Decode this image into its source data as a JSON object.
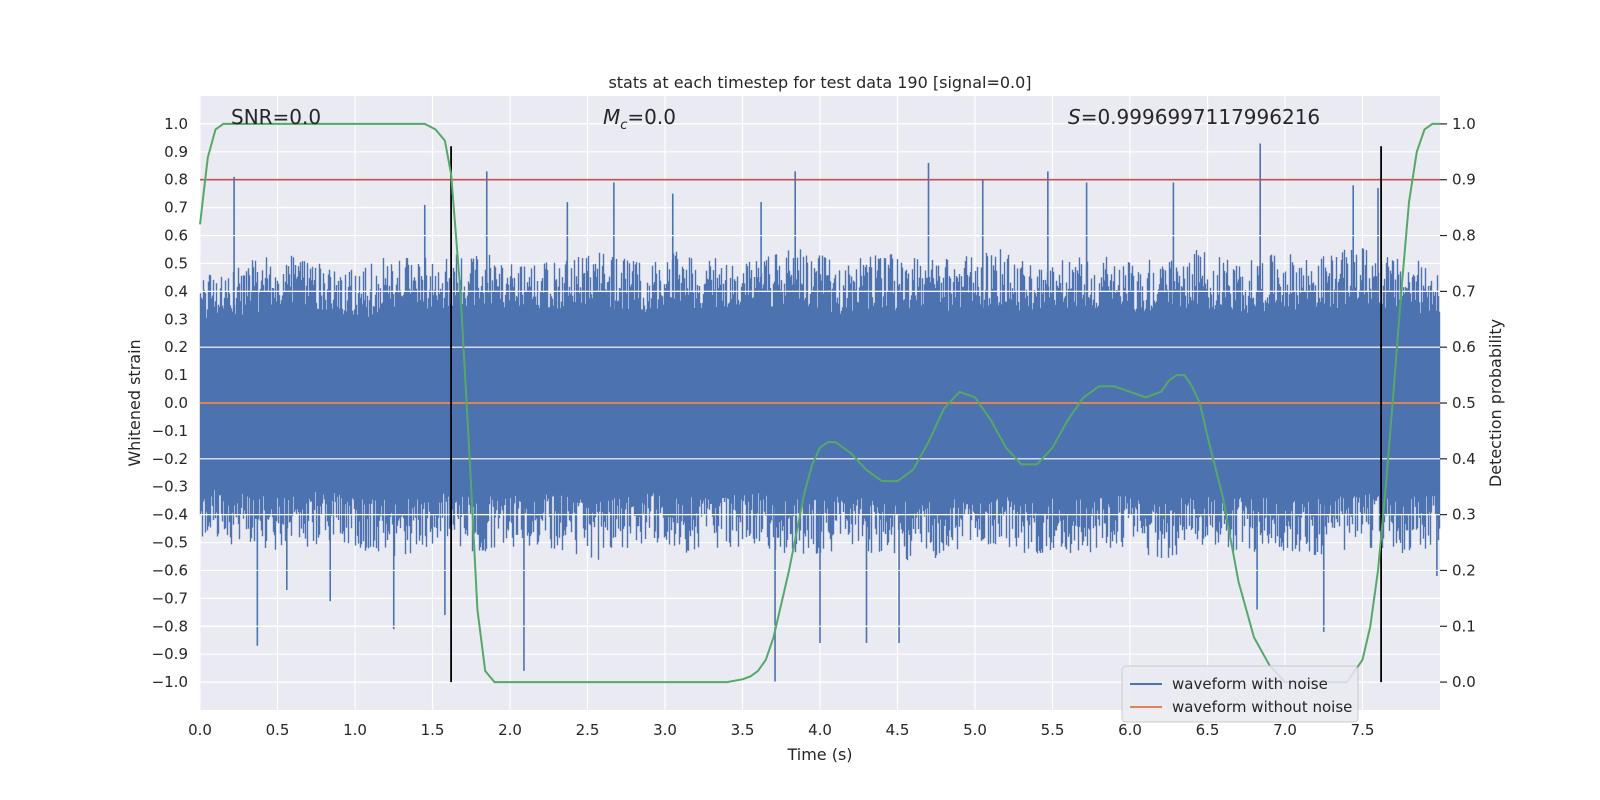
{
  "chart_data": {
    "type": "line",
    "title": "stats at each timestep for test data 190 [signal=0.0]",
    "xlabel": "Time (s)",
    "ylabel_left": "Whitened strain",
    "ylabel_right": "Detection probability",
    "xlim": [
      0.0,
      8.0
    ],
    "ylim_left": [
      -1.1,
      1.1
    ],
    "ylim_right": [
      -0.05,
      1.05
    ],
    "x_ticks": [
      0.0,
      0.5,
      1.0,
      1.5,
      2.0,
      2.5,
      3.0,
      3.5,
      4.0,
      4.5,
      5.0,
      5.5,
      6.0,
      6.5,
      7.0,
      7.5
    ],
    "x_tick_labels": [
      "0.0",
      "0.5",
      "1.0",
      "1.5",
      "2.0",
      "2.5",
      "3.0",
      "3.5",
      "4.0",
      "4.5",
      "5.0",
      "5.5",
      "6.0",
      "6.5",
      "7.0",
      "7.5"
    ],
    "y_left_ticks": [
      1.0,
      0.9,
      0.8,
      0.7,
      0.6,
      0.5,
      0.4,
      0.3,
      0.2,
      0.1,
      0.0,
      -0.1,
      -0.2,
      -0.3,
      -0.4,
      -0.5,
      -0.6,
      -0.7,
      -0.8,
      -0.9,
      -1.0
    ],
    "y_left_tick_labels": [
      "1.0",
      "0.9",
      "0.8",
      "0.7",
      "0.6",
      "0.5",
      "0.4",
      "0.3",
      "0.2",
      "0.1",
      "0.0",
      "−0.1",
      "−0.2",
      "−0.3",
      "−0.4",
      "−0.5",
      "−0.6",
      "−0.7",
      "−0.8",
      "−0.9",
      "−1.0"
    ],
    "y_right_ticks": [
      1.0,
      0.9,
      0.8,
      0.7,
      0.6,
      0.5,
      0.4,
      0.3,
      0.2,
      0.1,
      0.0
    ],
    "y_right_tick_labels": [
      "1.0",
      "0.9",
      "0.8",
      "0.7",
      "0.6",
      "0.5",
      "0.4",
      "0.3",
      "0.2",
      "0.1",
      "0.0"
    ],
    "grid": true,
    "legend": {
      "placement": "lower-right",
      "entries": [
        {
          "label": "waveform with noise",
          "color": "#4c72b0"
        },
        {
          "label": "waveform without noise",
          "color": "#dd8452"
        }
      ]
    },
    "annotations": [
      {
        "text": "SNR=0.0",
        "x": 0.2,
        "anchor": "start"
      },
      {
        "text_italic": "M",
        "text_sub": "c",
        "text_rest": "=0.0",
        "x": 2.6,
        "anchor": "start"
      },
      {
        "text_italic": "S",
        "text_rest": "=0.9996997117996216",
        "x": 5.6,
        "anchor": "start"
      }
    ],
    "noise_series": {
      "name": "waveform with noise",
      "color": "#4c72b0",
      "axis": "left",
      "x_range": [
        0.0,
        8.0
      ],
      "typical_envelope_upper": [
        0.38,
        0.42,
        0.45,
        0.44,
        0.4,
        0.46,
        0.43,
        0.47,
        0.41,
        0.44,
        0.45,
        0.42,
        0.46,
        0.43,
        0.44,
        0.47,
        0.42,
        0.45,
        0.43,
        0.44,
        0.46,
        0.41,
        0.45,
        0.44,
        0.43,
        0.46,
        0.42,
        0.45,
        0.44,
        0.47,
        0.43,
        0.42
      ],
      "typical_envelope_lower": [
        -0.4,
        -0.43,
        -0.45,
        -0.42,
        -0.44,
        -0.46,
        -0.42,
        -0.45,
        -0.43,
        -0.44,
        -0.47,
        -0.42,
        -0.45,
        -0.44,
        -0.43,
        -0.46,
        -0.44,
        -0.45,
        -0.48,
        -0.44,
        -0.43,
        -0.46,
        -0.45,
        -0.44,
        -0.47,
        -0.43,
        -0.45,
        -0.44,
        -0.46,
        -0.43,
        -0.45,
        -0.44
      ],
      "spikes": [
        {
          "x": 0.22,
          "y": 0.81
        },
        {
          "x": 0.37,
          "y": -0.87
        },
        {
          "x": 0.56,
          "y": -0.67
        },
        {
          "x": 0.84,
          "y": -0.71
        },
        {
          "x": 1.25,
          "y": -0.81
        },
        {
          "x": 1.45,
          "y": 0.71
        },
        {
          "x": 1.58,
          "y": -0.76
        },
        {
          "x": 1.85,
          "y": 0.83
        },
        {
          "x": 2.09,
          "y": -0.96
        },
        {
          "x": 2.37,
          "y": 0.72
        },
        {
          "x": 2.67,
          "y": 0.79
        },
        {
          "x": 3.05,
          "y": 0.75
        },
        {
          "x": 3.62,
          "y": 0.72
        },
        {
          "x": 3.71,
          "y": -1.0
        },
        {
          "x": 3.84,
          "y": 0.83
        },
        {
          "x": 4.0,
          "y": -0.86
        },
        {
          "x": 4.3,
          "y": -0.86
        },
        {
          "x": 4.51,
          "y": -0.86
        },
        {
          "x": 4.7,
          "y": 0.86
        },
        {
          "x": 5.05,
          "y": 0.8
        },
        {
          "x": 5.47,
          "y": 0.83
        },
        {
          "x": 5.72,
          "y": 0.79
        },
        {
          "x": 6.28,
          "y": 0.79
        },
        {
          "x": 6.84,
          "y": 0.93
        },
        {
          "x": 6.82,
          "y": -0.74
        },
        {
          "x": 7.25,
          "y": -0.82
        },
        {
          "x": 7.44,
          "y": 0.78
        },
        {
          "x": 7.6,
          "y": 0.77
        },
        {
          "x": 7.98,
          "y": -0.62
        }
      ]
    },
    "clean_series": {
      "name": "waveform without noise",
      "color": "#dd8452",
      "axis": "left",
      "x": [
        0.0,
        8.0
      ],
      "y": [
        0.0,
        0.0
      ]
    },
    "threshold_line": {
      "axis": "right",
      "y": 0.9,
      "color": "#c44e52"
    },
    "probability_series": {
      "color": "#55a868",
      "axis": "right",
      "x": [
        0.0,
        0.05,
        0.1,
        0.15,
        0.2,
        0.3,
        0.5,
        0.8,
        1.0,
        1.2,
        1.35,
        1.45,
        1.52,
        1.58,
        1.62,
        1.68,
        1.74,
        1.79,
        1.84,
        1.9,
        2.0,
        2.3,
        2.7,
        3.0,
        3.3,
        3.4,
        3.5,
        3.55,
        3.6,
        3.65,
        3.7,
        3.75,
        3.8,
        3.85,
        3.9,
        3.95,
        4.0,
        4.05,
        4.1,
        4.2,
        4.3,
        4.4,
        4.5,
        4.6,
        4.7,
        4.8,
        4.9,
        5.0,
        5.1,
        5.2,
        5.3,
        5.4,
        5.5,
        5.6,
        5.7,
        5.8,
        5.9,
        6.0,
        6.1,
        6.2,
        6.25,
        6.3,
        6.35,
        6.4,
        6.45,
        6.5,
        6.6,
        6.7,
        6.8,
        6.9,
        7.0,
        7.1,
        7.2,
        7.3,
        7.35,
        7.4,
        7.45,
        7.5,
        7.55,
        7.6,
        7.65,
        7.7,
        7.75,
        7.8,
        7.85,
        7.9,
        7.95,
        8.0
      ],
      "y": [
        0.82,
        0.94,
        0.99,
        1.0,
        1.0,
        1.0,
        1.0,
        1.0,
        1.0,
        1.0,
        1.0,
        1.0,
        0.99,
        0.97,
        0.91,
        0.7,
        0.4,
        0.13,
        0.02,
        0.0,
        0.0,
        0.0,
        0.0,
        0.0,
        0.0,
        0.0,
        0.005,
        0.01,
        0.02,
        0.04,
        0.08,
        0.14,
        0.2,
        0.27,
        0.34,
        0.39,
        0.42,
        0.43,
        0.43,
        0.41,
        0.38,
        0.36,
        0.36,
        0.38,
        0.43,
        0.49,
        0.52,
        0.51,
        0.47,
        0.42,
        0.39,
        0.39,
        0.42,
        0.47,
        0.51,
        0.53,
        0.53,
        0.52,
        0.51,
        0.52,
        0.54,
        0.55,
        0.55,
        0.53,
        0.5,
        0.44,
        0.33,
        0.18,
        0.08,
        0.03,
        0.0,
        0.0,
        0.0,
        0.0,
        0.0,
        0.0,
        0.02,
        0.04,
        0.1,
        0.2,
        0.35,
        0.52,
        0.7,
        0.86,
        0.95,
        0.99,
        1.0,
        1.0
      ]
    },
    "vertical_markers": [
      {
        "x": 1.62,
        "y_range_left": [
          -1.0,
          0.92
        ],
        "color": "#000000"
      },
      {
        "x": 7.62,
        "y_range_left": [
          -1.0,
          0.92
        ],
        "color": "#000000"
      }
    ],
    "right_axis_gridlines": [
      1.0,
      0.9,
      0.8,
      0.7,
      0.6,
      0.5,
      0.4,
      0.3,
      0.2,
      0.1,
      0.0
    ]
  }
}
